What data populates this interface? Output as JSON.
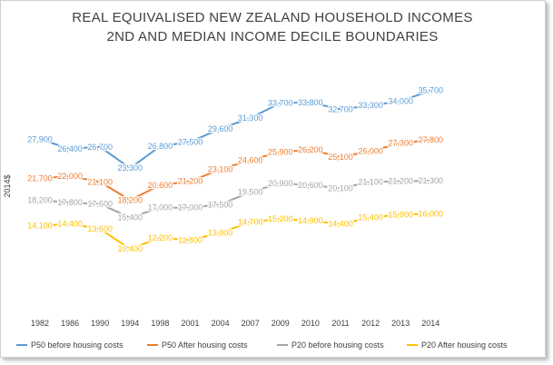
{
  "chart_data": {
    "type": "line",
    "title_line1": "REAL EQUIVALISED NEW ZEALAND HOUSEHOLD INCOMES",
    "title_line2": "2ND AND MEDIAN INCOME DECILE BOUNDARIES",
    "ylabel": "2014$",
    "xlabel": "",
    "ylim": [
      8000,
      38000
    ],
    "grid": false,
    "legend_position": "bottom",
    "categories": [
      "1982",
      "1986",
      "1990",
      "1994",
      "1998",
      "2001",
      "2004",
      "2007",
      "2009",
      "2010",
      "2011",
      "2012",
      "2013",
      "2014"
    ],
    "series": [
      {
        "name": "P50 before housing costs",
        "color": "#5B9BD5",
        "values": [
          27900,
          26400,
          26700,
          23300,
          26800,
          27500,
          29600,
          31300,
          33700,
          33800,
          32700,
          33300,
          34000,
          35700
        ],
        "labels": [
          "27,900",
          "26,400",
          "26,700",
          "23,300",
          "26,800",
          "27,500",
          "29,600",
          "31,300",
          "33,700",
          "33,800",
          "32,700",
          "33,300",
          "34,000",
          "35,700"
        ]
      },
      {
        "name": "P50 After housing costs",
        "color": "#ED7D31",
        "values": [
          21700,
          22000,
          21100,
          18200,
          20600,
          21200,
          23100,
          24600,
          25900,
          26200,
          25100,
          26000,
          27300,
          27800
        ],
        "labels": [
          "21,700",
          "22,000",
          "21,100",
          "18,200",
          "20,600",
          "21,200",
          "23,100",
          "24,600",
          "25,900",
          "26,200",
          "25,100",
          "26,000",
          "27,300",
          "27,800"
        ]
      },
      {
        "name": "P20 before housing costs",
        "color": "#A5A5A5",
        "values": [
          18200,
          17800,
          17600,
          15400,
          17000,
          17000,
          17500,
          19500,
          20900,
          20600,
          20100,
          21100,
          21200,
          21300
        ],
        "labels": [
          "18,200",
          "17,800",
          "17,600",
          "15,400",
          "17,000",
          "17,000",
          "17,500",
          "19,500",
          "20,900",
          "20,600",
          "20,100",
          "21,100",
          "21,200",
          "21,300"
        ]
      },
      {
        "name": "P20 After housing costs",
        "color": "#FFC000",
        "values": [
          14100,
          14400,
          13600,
          10400,
          12200,
          11800,
          13000,
          14700,
          15200,
          14900,
          14400,
          15400,
          15900,
          16000
        ],
        "labels": [
          "14,100",
          "14,400",
          "13,600",
          "10,400",
          "12,200",
          "11,800",
          "13,000",
          "14,700",
          "15,200",
          "14,900",
          "14,400",
          "15,400",
          "15,900",
          "16,000"
        ]
      }
    ]
  }
}
